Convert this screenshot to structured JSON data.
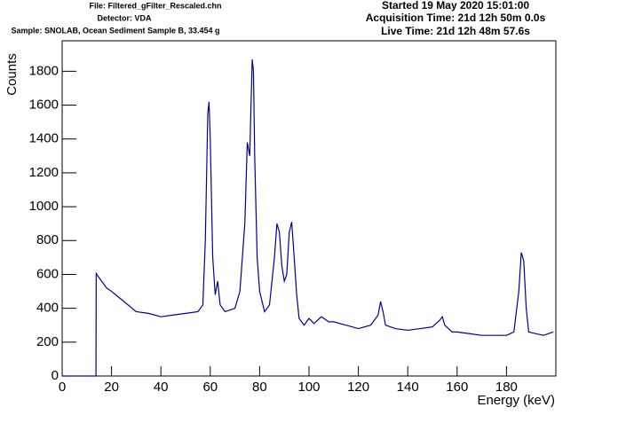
{
  "header": {
    "file": "File: Filtered_gFilter_Rescaled.chn",
    "detector": "Detector: VDA",
    "sample": "Sample: SNOLAB, Ocean Sediment Sample B, 33.454 g",
    "started": "Started 19 May 2020 15:01:00",
    "acquisition_time": "Acquisition Time: 21d 12h 50m 0.0s",
    "live_time": "Live Time: 21d 12h 48m 57.6s"
  },
  "chart_data": {
    "type": "line",
    "x_label": "Energy (keV)",
    "y_label": "Counts",
    "xlim": [
      0,
      200
    ],
    "ylim": [
      0,
      1980
    ],
    "xticks": [
      0,
      20,
      40,
      60,
      80,
      100,
      120,
      140,
      160,
      180
    ],
    "yticks": [
      0,
      200,
      400,
      600,
      800,
      1000,
      1200,
      1400,
      1600,
      1800
    ],
    "series": [
      {
        "name": "Counts",
        "color": "#000099",
        "x": [
          0,
          13.7,
          13.8,
          14,
          16,
          18,
          20,
          25,
          30,
          35,
          40,
          45,
          50,
          55,
          57,
          58,
          59,
          59.5,
          60,
          61,
          62,
          63,
          64,
          66,
          70,
          72,
          74,
          75,
          76,
          76.5,
          77,
          77.5,
          78,
          79,
          80,
          82,
          84,
          86,
          87,
          88,
          89,
          90,
          91,
          92,
          93,
          94,
          95,
          96,
          98,
          100,
          102,
          105,
          108,
          110,
          115,
          120,
          125,
          128,
          129,
          130,
          131,
          135,
          140,
          145,
          150,
          153,
          154,
          155,
          158,
          160,
          165,
          170,
          175,
          180,
          183,
          185,
          186,
          187,
          188,
          189,
          192,
          195,
          199
        ],
        "values": [
          0,
          0,
          610,
          600,
          560,
          520,
          500,
          440,
          380,
          370,
          350,
          360,
          370,
          380,
          420,
          800,
          1550,
          1620,
          1400,
          700,
          480,
          560,
          420,
          380,
          400,
          500,
          900,
          1380,
          1300,
          1600,
          1870,
          1800,
          1300,
          700,
          500,
          380,
          420,
          700,
          900,
          850,
          650,
          560,
          600,
          850,
          910,
          700,
          480,
          340,
          300,
          340,
          310,
          350,
          320,
          320,
          300,
          280,
          300,
          360,
          440,
          380,
          300,
          280,
          270,
          280,
          290,
          330,
          350,
          300,
          260,
          260,
          250,
          240,
          240,
          240,
          260,
          500,
          730,
          680,
          400,
          260,
          250,
          240,
          260
        ]
      }
    ]
  }
}
